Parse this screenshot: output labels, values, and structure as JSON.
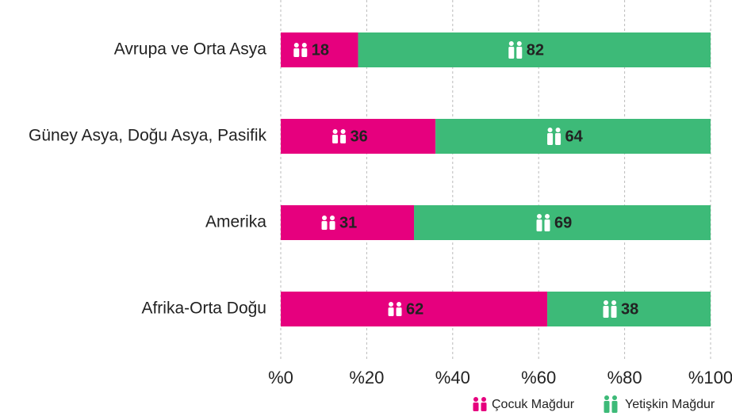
{
  "chart_data": {
    "type": "stacked-bar-horizontal",
    "categories": [
      "Avrupa ve Orta Asya",
      "Güney Asya, Doğu Asya, Pasifik",
      "Amerika",
      "Afrika-Orta Doğu"
    ],
    "series": [
      {
        "name": "Çocuk Mağdur",
        "color": "#e6007e",
        "values": [
          18,
          36,
          31,
          62
        ]
      },
      {
        "name": "Yetişkin Mağdur",
        "color": "#3dba78",
        "values": [
          82,
          64,
          69,
          38
        ]
      }
    ],
    "xlim": [
      0,
      100
    ],
    "xticks": [
      {
        "value": 0,
        "label": "%0"
      },
      {
        "value": 20,
        "label": "%20"
      },
      {
        "value": 40,
        "label": "%40"
      },
      {
        "value": 60,
        "label": "%60"
      },
      {
        "value": 80,
        "label": "%80"
      },
      {
        "value": 100,
        "label": "%100"
      }
    ],
    "grid": true
  }
}
